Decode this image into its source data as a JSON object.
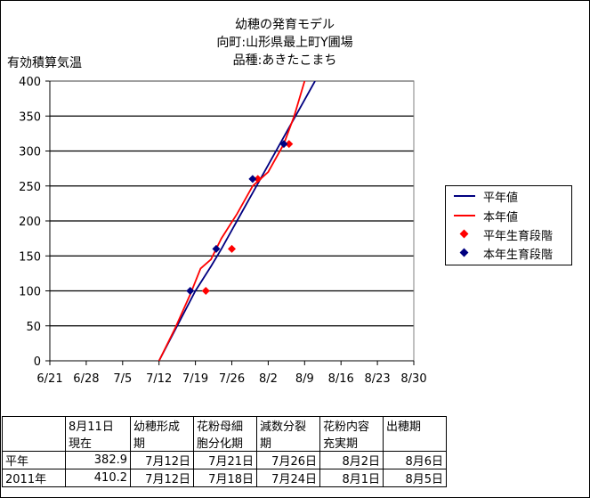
{
  "chart_data": {
    "type": "line",
    "title_lines": [
      "幼穂の発育モデル",
      "向町:山形県最上町Y圃場",
      "品種:あきたこまち"
    ],
    "ylabel": "有効積算気温",
    "x_tick_labels": [
      "6/21",
      "6/28",
      "7/5",
      "7/12",
      "7/19",
      "7/26",
      "8/2",
      "8/9",
      "8/16",
      "8/23",
      "8/30"
    ],
    "x_tick_days": [
      0,
      7,
      14,
      21,
      28,
      35,
      42,
      49,
      56,
      63,
      70
    ],
    "xlim_days": [
      0,
      70
    ],
    "ylim": [
      0,
      400
    ],
    "y_ticks": [
      0,
      50,
      100,
      150,
      200,
      250,
      300,
      350,
      400
    ],
    "grid": "horizontal",
    "legend_position": "right",
    "colors": {
      "heinen": "#000080",
      "honnen": "#ff0000"
    },
    "series": [
      {
        "name": "平年値",
        "kind": "line",
        "color": "#000080",
        "points": [
          [
            21,
            0
          ],
          [
            28,
            100
          ],
          [
            31,
            135
          ],
          [
            33,
            160
          ],
          [
            36,
            200
          ],
          [
            39,
            240
          ],
          [
            42,
            280
          ],
          [
            45,
            320
          ],
          [
            48,
            360
          ],
          [
            51,
            400
          ]
        ]
      },
      {
        "name": "本年値",
        "kind": "line",
        "color": "#ff0000",
        "points": [
          [
            21,
            0
          ],
          [
            24,
            45
          ],
          [
            27,
            95
          ],
          [
            29,
            132
          ],
          [
            31,
            145
          ],
          [
            33,
            175
          ],
          [
            36,
            210
          ],
          [
            39,
            250
          ],
          [
            42,
            270
          ],
          [
            45,
            310
          ],
          [
            47,
            350
          ],
          [
            49,
            400
          ]
        ]
      },
      {
        "name": "平年生育段階",
        "kind": "marker",
        "color": "#ff0000",
        "points": [
          [
            30,
            100
          ],
          [
            35,
            160
          ],
          [
            40,
            260
          ],
          [
            46,
            310
          ]
        ]
      },
      {
        "name": "本年生育段階",
        "kind": "marker",
        "color": "#000080",
        "points": [
          [
            27,
            100
          ],
          [
            32,
            160
          ],
          [
            39,
            260
          ],
          [
            45,
            310
          ]
        ]
      }
    ]
  },
  "table": {
    "headers": [
      [
        "",
        ""
      ],
      [
        "8月11日",
        "現在"
      ],
      [
        "幼穂形成",
        "期"
      ],
      [
        "花粉母細",
        "胞分化期"
      ],
      [
        "減数分裂",
        "期"
      ],
      [
        "花粉内容",
        "充実期"
      ],
      [
        "出穂期",
        ""
      ]
    ],
    "rows": [
      [
        "平年",
        "382.9",
        "7月12日",
        "7月21日",
        "7月26日",
        "8月2日",
        "8月6日"
      ],
      [
        "2011年",
        "410.2",
        "7月12日",
        "7月18日",
        "7月24日",
        "8月1日",
        "8月5日"
      ]
    ]
  }
}
